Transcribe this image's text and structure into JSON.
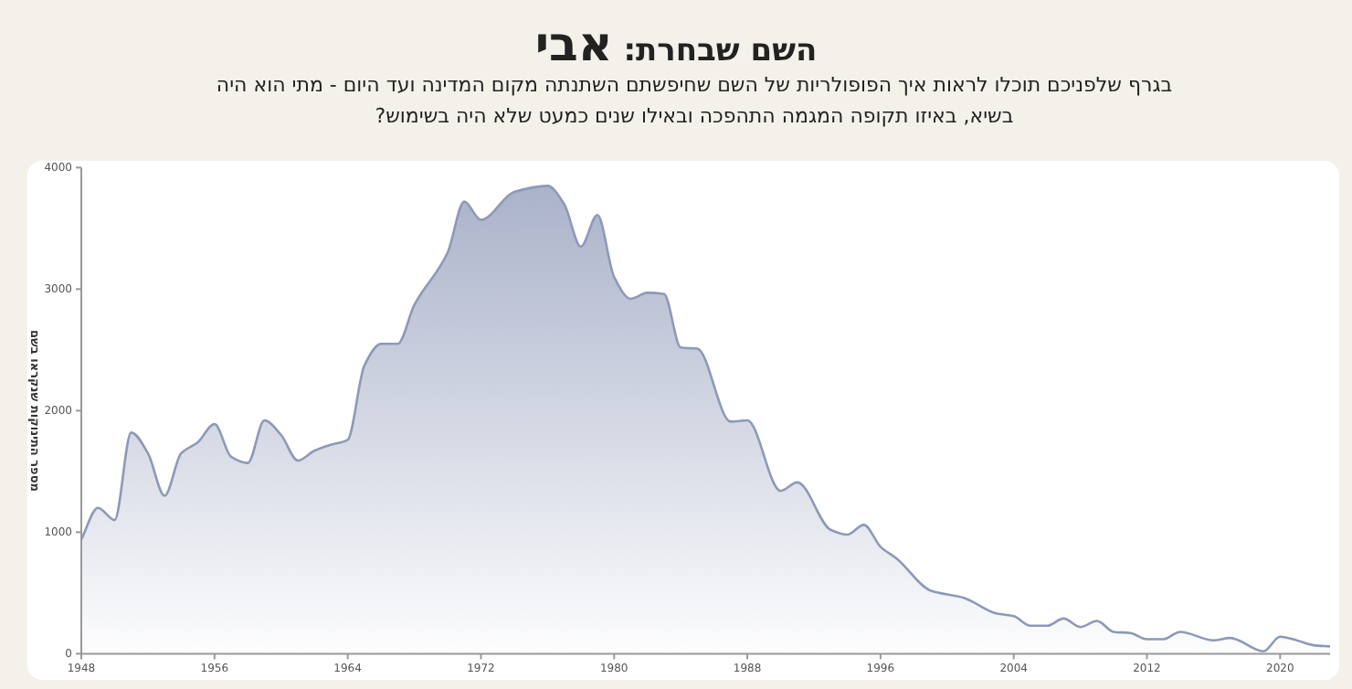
{
  "chart_data": {
    "type": "area",
    "title": "השם שבחרת: אבי",
    "subtitle": "בגרף שלפניכם תוכלו לראות איך הפופולריות של השם שחיפשתם השתנתה מקום המדינה ועד היום - מתי הוא היה בשיא, באיזו תקופה המגמה התהפכה ובאילו שנים כמעט שלא היה בשימוש?",
    "ylabel": "מספר התינוקות שנקראו בשם",
    "x": [
      1948,
      1949,
      1950,
      1951,
      1952,
      1953,
      1954,
      1955,
      1956,
      1957,
      1958,
      1959,
      1960,
      1961,
      1962,
      1963,
      1964,
      1965,
      1966,
      1967,
      1968,
      1970,
      1971,
      1972,
      1974,
      1976,
      1977,
      1978,
      1979,
      1980,
      1981,
      1982,
      1983,
      1984,
      1985,
      1987,
      1988,
      1990,
      1991,
      1993,
      1994,
      1995,
      1996,
      1997,
      1999,
      2001,
      2003,
      2004,
      2005,
      2006,
      2007,
      2008,
      2009,
      2010,
      2011,
      2012,
      2013,
      2014,
      2016,
      2017,
      2019,
      2020,
      2021,
      2022,
      2023
    ],
    "series": [
      {
        "color": "#8e99b8",
        "values": [
          940,
          1200,
          1100,
          1820,
          1650,
          1300,
          1650,
          1740,
          1890,
          1620,
          1570,
          1920,
          1800,
          1590,
          1670,
          1720,
          1760,
          2370,
          2550,
          2550,
          2870,
          3300,
          3720,
          3570,
          3800,
          3850,
          3700,
          3350,
          3610,
          3100,
          2920,
          2970,
          2960,
          2520,
          2510,
          1910,
          1920,
          1340,
          1410,
          1020,
          980,
          1060,
          880,
          780,
          520,
          460,
          330,
          310,
          230,
          230,
          290,
          220,
          270,
          180,
          170,
          120,
          120,
          180,
          110,
          130,
          20,
          140,
          110,
          70,
          60
        ]
      }
    ],
    "xlim": [
      1948,
      2023
    ],
    "xticks": [
      1948,
      1956,
      1964,
      1972,
      1980,
      1988,
      1996,
      2004,
      2012,
      2020
    ],
    "ylim": [
      0,
      4000
    ],
    "yticks": [
      0,
      1000,
      2000,
      3000,
      4000
    ],
    "grid": false
  }
}
